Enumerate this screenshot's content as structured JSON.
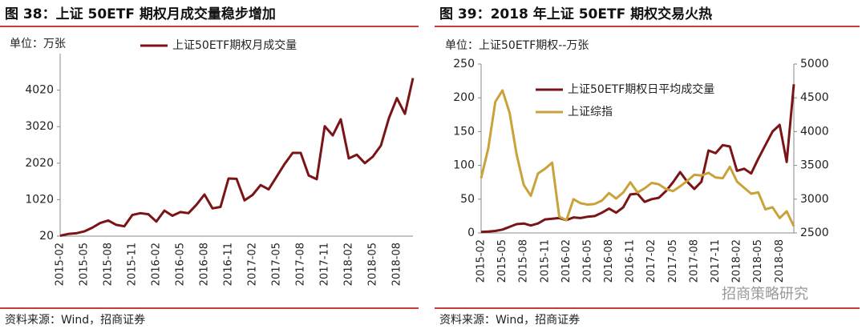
{
  "watermark": "招商策略研究",
  "chart_data": [
    {
      "type": "line",
      "title": "图 38：上证 50ETF 期权月成交量稳步增加",
      "unit_label": "单位：万张",
      "source": "资料来源：Wind，招商证券",
      "categories": [
        "2015-02",
        null,
        null,
        "2015-05",
        null,
        null,
        "2015-08",
        null,
        null,
        "2015-11",
        null,
        null,
        "2016-02",
        null,
        null,
        "2016-05",
        null,
        null,
        "2016-08",
        null,
        null,
        "2016-11",
        null,
        null,
        "2017-02",
        null,
        null,
        "2017-05",
        null,
        null,
        "2017-08",
        null,
        null,
        "2017-11",
        null,
        null,
        "2018-02",
        null,
        null,
        "2018-05",
        null,
        null,
        "2018-08",
        null,
        null
      ],
      "series": [
        {
          "name": "上证50ETF期权月成交量",
          "color": "#7b1416",
          "values": [
            30,
            80,
            100,
            150,
            250,
            380,
            450,
            330,
            290,
            600,
            650,
            620,
            420,
            720,
            580,
            680,
            650,
            880,
            1160,
            780,
            820,
            1600,
            1590,
            1000,
            1150,
            1420,
            1300,
            1650,
            2000,
            2300,
            2300,
            1680,
            1580,
            3030,
            2780,
            3220,
            2150,
            2250,
            2020,
            2200,
            2500,
            3250,
            3800,
            3370,
            4350
          ]
        }
      ],
      "ylim": [
        20,
        5020
      ],
      "yticks": [
        20,
        1020,
        2020,
        3020,
        4020
      ]
    },
    {
      "type": "line",
      "title": "图 39：2018 年上证 50ETF 期权交易火热",
      "unit_label": "单位：上证50ETF期权--万张",
      "source": "资料来源：Wind，招商证券",
      "categories": [
        "2015-02",
        null,
        null,
        "2015-05",
        null,
        null,
        "2015-08",
        null,
        null,
        "2015-11",
        null,
        null,
        "2016-02",
        null,
        null,
        "2016-05",
        null,
        null,
        "2016-08",
        null,
        null,
        "2016-11",
        null,
        null,
        "2017-02",
        null,
        null,
        "2017-05",
        null,
        null,
        "2017-08",
        null,
        null,
        "2017-11",
        null,
        null,
        "2018-02",
        null,
        null,
        "2018-05",
        null,
        null,
        "2018-08",
        null,
        null
      ],
      "series": [
        {
          "name": "上证50ETF期权日平均成交量",
          "color": "#7b1416",
          "values": [
            1.5,
            2,
            3,
            5,
            9,
            13,
            14,
            11,
            14,
            20,
            21,
            22,
            19,
            23,
            22,
            24,
            25,
            30,
            36,
            30,
            38,
            57,
            58,
            46,
            50,
            52,
            62,
            75,
            90,
            76,
            65,
            76,
            122,
            118,
            130,
            128,
            92,
            95,
            88,
            110,
            130,
            150,
            160,
            105,
            220
          ]
        },
        {
          "name": "上证综指",
          "color": "#c9a23a",
          "axis": "y2",
          "values": [
            3310,
            3750,
            4440,
            4610,
            4280,
            3660,
            3210,
            3050,
            3380,
            3450,
            3540,
            2740,
            2690,
            3000,
            2940,
            2920,
            2930,
            2980,
            3090,
            3010,
            3100,
            3250,
            3100,
            3160,
            3240,
            3220,
            3150,
            3120,
            3190,
            3270,
            3360,
            3350,
            3390,
            3320,
            3310,
            3480,
            3260,
            3170,
            3080,
            3100,
            2850,
            2880,
            2720,
            2820,
            2600
          ]
        }
      ],
      "ylim": [
        0,
        250
      ],
      "yticks": [
        0,
        50,
        100,
        150,
        200,
        250
      ],
      "y2lim": [
        2500,
        5000
      ],
      "y2ticks": [
        2500,
        3000,
        3500,
        4000,
        4500,
        5000
      ]
    }
  ]
}
